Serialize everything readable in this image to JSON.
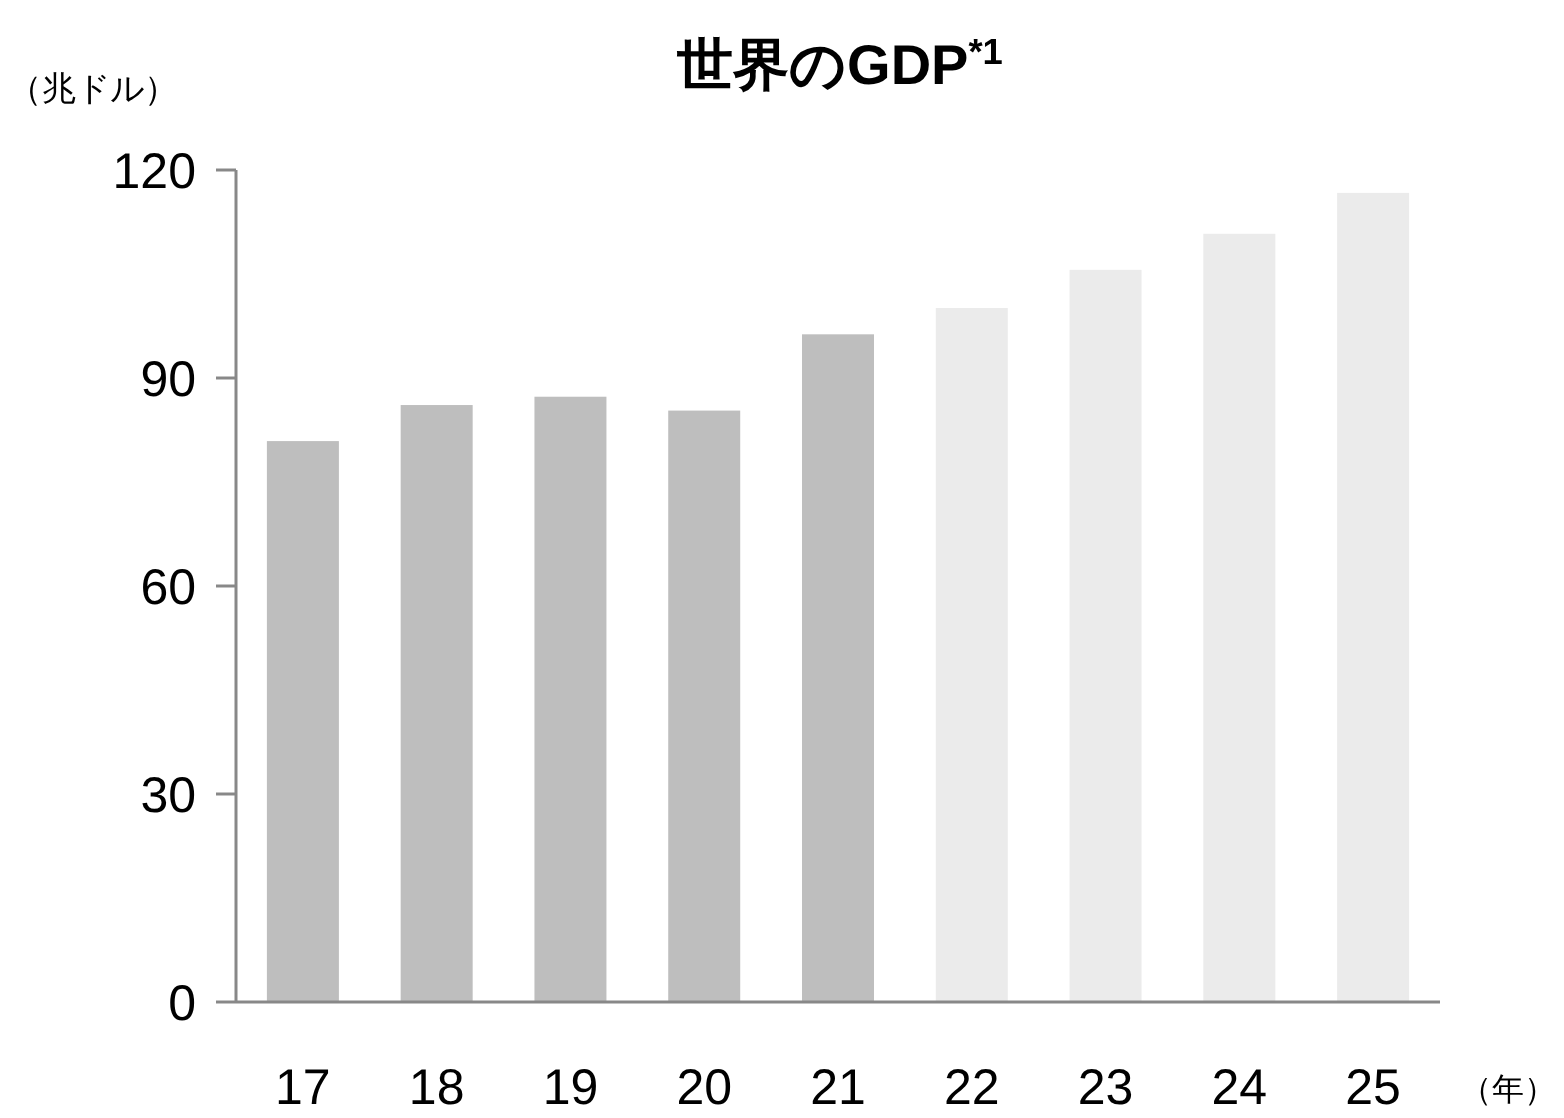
{
  "chart_data": {
    "type": "bar",
    "title": "世界のGDP$^{*1}$",
    "ylabel": "（兆ドル）",
    "xlabel": "（年）",
    "categories": [
      "17",
      "18",
      "19",
      "20",
      "21",
      "22",
      "23",
      "24",
      "25"
    ],
    "values": [
      80.9,
      86.1,
      87.3,
      85.3,
      96.3,
      100.1,
      105.6,
      110.8,
      116.7
    ],
    "colors": [
      "#bebebe",
      "#bebebe",
      "#bebebe",
      "#bebebe",
      "#bebebe",
      "#ebebeb",
      "#ebebeb",
      "#ebebeb",
      "#ebebeb"
    ],
    "ylim": [
      0,
      120
    ],
    "yticks": [
      0,
      30,
      60,
      90,
      120
    ],
    "grid": false
  }
}
